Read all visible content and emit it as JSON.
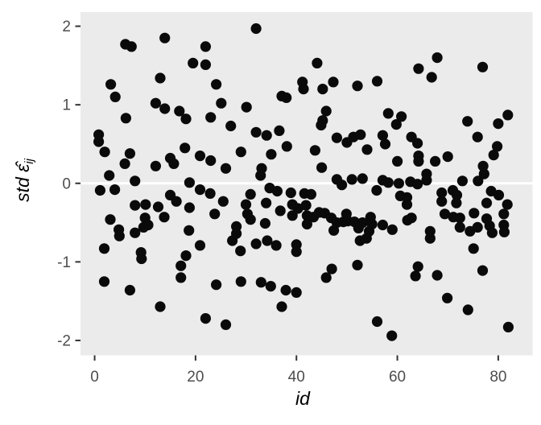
{
  "chart_data": {
    "type": "scatter",
    "title": "",
    "xlabel": "id",
    "ylabel_text": "std ε̂ij",
    "ylabel_parts": {
      "pre": "std ",
      "eps": "ε̂",
      "sub": "ij"
    },
    "x_ticks": [
      0,
      20,
      40,
      60,
      80
    ],
    "y_ticks": [
      -2,
      -1,
      0,
      1,
      2
    ],
    "xlim": [
      -2.8,
      86.8
    ],
    "ylim": [
      -2.19,
      2.18
    ],
    "grid": "off",
    "zero_line_y": 0,
    "legend": "none",
    "colors": {
      "panel_bg": "#EBEBEB",
      "point": "#0a0a0a",
      "zero_line": "#FFFFFF",
      "tick_mark": "#333333",
      "tick_label": "#4d4d4d",
      "axis_title": "#000000"
    },
    "points": [
      [
        6.1,
        1.77
      ],
      [
        7.3,
        1.74
      ],
      [
        13.9,
        1.85
      ],
      [
        3.2,
        1.26
      ],
      [
        13.0,
        1.34
      ],
      [
        4.1,
        1.1
      ],
      [
        12.1,
        1.02
      ],
      [
        13.9,
        0.95
      ],
      [
        16.8,
        0.92
      ],
      [
        18.1,
        0.82
      ],
      [
        6.2,
        0.83
      ],
      [
        0.8,
        0.62
      ],
      [
        0.8,
        0.53
      ],
      [
        2.0,
        0.4
      ],
      [
        7.0,
        0.38
      ],
      [
        6.0,
        0.25
      ],
      [
        12.1,
        0.22
      ],
      [
        15.0,
        0.32
      ],
      [
        15.7,
        0.25
      ],
      [
        17.9,
        0.45
      ],
      [
        2.9,
        0.1
      ],
      [
        8.0,
        0.03
      ],
      [
        18.8,
        0.01
      ],
      [
        1.1,
        -0.09
      ],
      [
        4.0,
        -0.08
      ],
      [
        15.0,
        -0.15
      ],
      [
        16.2,
        -0.23
      ],
      [
        8.0,
        -0.28
      ],
      [
        10.1,
        -0.27
      ],
      [
        12.6,
        -0.3
      ],
      [
        18.8,
        -0.31
      ],
      [
        13.8,
        -0.43
      ],
      [
        10.0,
        -0.44
      ],
      [
        10.6,
        -0.53
      ],
      [
        9.7,
        -0.56
      ],
      [
        3.1,
        -0.46
      ],
      [
        4.8,
        -0.59
      ],
      [
        4.9,
        -0.67
      ],
      [
        8.0,
        -0.63
      ],
      [
        18.7,
        -0.6
      ],
      [
        1.9,
        -0.83
      ],
      [
        9.2,
        -0.88
      ],
      [
        9.3,
        -0.96
      ],
      [
        18.1,
        -0.92
      ],
      [
        17.1,
        -1.05
      ],
      [
        17.1,
        -1.2
      ],
      [
        1.9,
        -1.25
      ],
      [
        7.0,
        -1.36
      ],
      [
        13.0,
        -1.57
      ],
      [
        32.0,
        1.97
      ],
      [
        22.0,
        1.74
      ],
      [
        19.5,
        1.53
      ],
      [
        22.0,
        1.51
      ],
      [
        24.1,
        1.26
      ],
      [
        41.2,
        1.29
      ],
      [
        41.4,
        1.2
      ],
      [
        37.1,
        1.11
      ],
      [
        38.0,
        1.09
      ],
      [
        25.1,
        1.02
      ],
      [
        30.1,
        0.97
      ],
      [
        23.0,
        0.84
      ],
      [
        27.0,
        0.73
      ],
      [
        32.0,
        0.65
      ],
      [
        34.1,
        0.61
      ],
      [
        36.6,
        0.67
      ],
      [
        38.1,
        0.47
      ],
      [
        29.0,
        0.4
      ],
      [
        20.9,
        0.35
      ],
      [
        23.0,
        0.29
      ],
      [
        35.0,
        0.37
      ],
      [
        26.0,
        0.19
      ],
      [
        33.1,
        0.19
      ],
      [
        32.9,
        0.1
      ],
      [
        34.7,
        -0.06
      ],
      [
        36.2,
        -0.1
      ],
      [
        20.9,
        -0.08
      ],
      [
        22.9,
        -0.13
      ],
      [
        30.9,
        -0.14
      ],
      [
        30.0,
        -0.27
      ],
      [
        38.9,
        -0.12
      ],
      [
        41.6,
        -0.13
      ],
      [
        25.5,
        -0.23
      ],
      [
        34.0,
        -0.25
      ],
      [
        23.8,
        -0.39
      ],
      [
        30.3,
        -0.39
      ],
      [
        30.9,
        -0.46
      ],
      [
        39.2,
        -0.27
      ],
      [
        41.9,
        -0.28
      ],
      [
        39.2,
        -0.41
      ],
      [
        40.3,
        -0.32
      ],
      [
        36.8,
        -0.35
      ],
      [
        28.1,
        -0.55
      ],
      [
        28.1,
        -0.64
      ],
      [
        33.8,
        -0.51
      ],
      [
        27.3,
        -0.73
      ],
      [
        34.2,
        -0.73
      ],
      [
        20.9,
        -0.79
      ],
      [
        28.9,
        -0.86
      ],
      [
        32.0,
        -0.77
      ],
      [
        36.0,
        -0.79
      ],
      [
        40.0,
        -0.78
      ],
      [
        40.0,
        -0.87
      ],
      [
        24.1,
        -1.29
      ],
      [
        29.0,
        -1.25
      ],
      [
        33.0,
        -1.26
      ],
      [
        34.9,
        -1.31
      ],
      [
        37.9,
        -1.36
      ],
      [
        40.0,
        -1.39
      ],
      [
        37.1,
        -1.57
      ],
      [
        22.0,
        -1.72
      ],
      [
        26.0,
        -1.8
      ],
      [
        44.1,
        1.53
      ],
      [
        47.3,
        1.29
      ],
      [
        45.2,
        1.2
      ],
      [
        52.1,
        1.24
      ],
      [
        56.0,
        1.3
      ],
      [
        64.2,
        1.46
      ],
      [
        45.9,
        0.92
      ],
      [
        45.2,
        0.8
      ],
      [
        58.2,
        0.89
      ],
      [
        60.8,
        0.85
      ],
      [
        59.8,
        0.75
      ],
      [
        44.9,
        0.74
      ],
      [
        48.0,
        0.58
      ],
      [
        50.0,
        0.52
      ],
      [
        51.3,
        0.59
      ],
      [
        52.7,
        0.62
      ],
      [
        57.1,
        0.61
      ],
      [
        57.6,
        0.5
      ],
      [
        54.0,
        0.43
      ],
      [
        43.7,
        0.42
      ],
      [
        62.8,
        0.59
      ],
      [
        64.0,
        0.51
      ],
      [
        45.0,
        0.2
      ],
      [
        60.0,
        0.28
      ],
      [
        64.2,
        0.35
      ],
      [
        64.2,
        0.28
      ],
      [
        48.0,
        0.05
      ],
      [
        49.0,
        -0.02
      ],
      [
        51.0,
        0.05
      ],
      [
        53.1,
        0.06
      ],
      [
        57.1,
        0.04
      ],
      [
        58.2,
        0.01
      ],
      [
        60.3,
        0.0
      ],
      [
        62.6,
        0.02
      ],
      [
        64.0,
        -0.01
      ],
      [
        55.9,
        -0.09
      ],
      [
        42.9,
        -0.14
      ],
      [
        60.6,
        -0.16
      ],
      [
        61.9,
        -0.18
      ],
      [
        61.9,
        -0.27
      ],
      [
        43.4,
        -0.43
      ],
      [
        44.5,
        -0.37
      ],
      [
        45.6,
        -0.38
      ],
      [
        46.9,
        -0.44
      ],
      [
        48.0,
        -0.5
      ],
      [
        49.3,
        -0.49
      ],
      [
        42.1,
        -0.41
      ],
      [
        42.1,
        -0.52
      ],
      [
        47.4,
        -0.6
      ],
      [
        49.9,
        -0.39
      ],
      [
        50.2,
        -0.48
      ],
      [
        51.5,
        -0.49
      ],
      [
        52.3,
        -0.57
      ],
      [
        53.1,
        -0.5
      ],
      [
        54.7,
        -0.43
      ],
      [
        55.0,
        -0.52
      ],
      [
        54.4,
        -0.61
      ],
      [
        57.1,
        -0.53
      ],
      [
        59.0,
        -0.59
      ],
      [
        62.0,
        -0.47
      ],
      [
        62.8,
        -0.44
      ],
      [
        52.6,
        -0.73
      ],
      [
        53.9,
        -0.7
      ],
      [
        47.0,
        -1.09
      ],
      [
        45.9,
        -1.2
      ],
      [
        52.1,
        -1.04
      ],
      [
        64.1,
        -1.06
      ],
      [
        63.6,
        -1.18
      ],
      [
        56.0,
        -1.76
      ],
      [
        58.9,
        -1.94
      ],
      [
        67.9,
        1.6
      ],
      [
        66.8,
        1.35
      ],
      [
        76.9,
        1.48
      ],
      [
        81.9,
        0.87
      ],
      [
        73.9,
        0.79
      ],
      [
        80.0,
        0.76
      ],
      [
        75.9,
        0.59
      ],
      [
        79.8,
        0.47
      ],
      [
        79.1,
        0.36
      ],
      [
        67.5,
        0.28
      ],
      [
        70.0,
        0.34
      ],
      [
        77.0,
        0.22
      ],
      [
        77.2,
        0.12
      ],
      [
        65.8,
        0.12
      ],
      [
        65.8,
        0.04
      ],
      [
        72.9,
        0.03
      ],
      [
        76.0,
        0.03
      ],
      [
        68.8,
        -0.12
      ],
      [
        68.8,
        -0.23
      ],
      [
        71.0,
        -0.09
      ],
      [
        71.8,
        -0.15
      ],
      [
        71.7,
        -0.25
      ],
      [
        78.6,
        -0.1
      ],
      [
        80.1,
        -0.15
      ],
      [
        77.7,
        -0.25
      ],
      [
        81.8,
        -0.27
      ],
      [
        69.4,
        -0.39
      ],
      [
        71.1,
        -0.43
      ],
      [
        72.4,
        -0.44
      ],
      [
        75.2,
        -0.38
      ],
      [
        81.1,
        -0.39
      ],
      [
        81.1,
        -0.53
      ],
      [
        77.7,
        -0.45
      ],
      [
        78.3,
        -0.54
      ],
      [
        72.4,
        -0.56
      ],
      [
        74.4,
        -0.61
      ],
      [
        75.9,
        -0.56
      ],
      [
        78.8,
        -0.63
      ],
      [
        81.2,
        -0.62
      ],
      [
        66.5,
        -0.61
      ],
      [
        66.5,
        -0.7
      ],
      [
        75.1,
        -0.83
      ],
      [
        67.9,
        -1.17
      ],
      [
        76.9,
        -1.11
      ],
      [
        69.9,
        -1.46
      ],
      [
        74.0,
        -1.61
      ],
      [
        82.0,
        -1.83
      ]
    ]
  }
}
